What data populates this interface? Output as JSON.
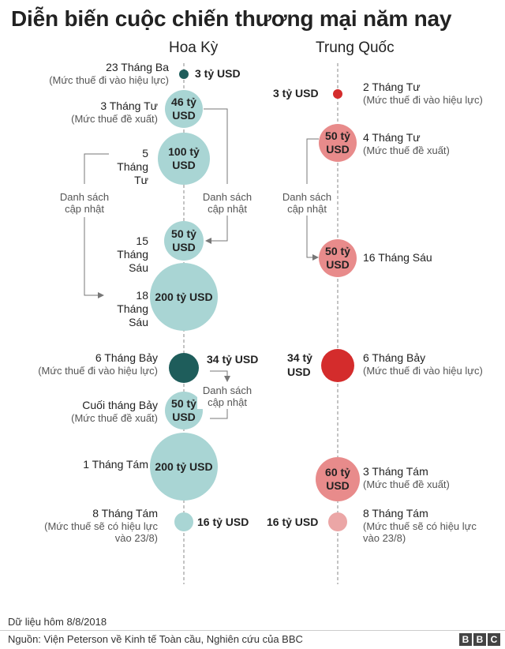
{
  "title": "Diễn biến cuộc chiến thương mại năm nay",
  "columns": {
    "us": "Hoa Kỳ",
    "china": "Trung Quốc"
  },
  "us_events": [
    {
      "date": "23 Tháng Ba",
      "note": "(Mức thuế đi vào hiệu lực)",
      "value": "3 tỷ USD"
    },
    {
      "date": "3 Tháng Tư",
      "note": "(Mức thuế đề xuất)",
      "value": "46 tỷ USD"
    },
    {
      "date": "5 Tháng Tư",
      "note": "",
      "value": "100 tỷ USD"
    },
    {
      "date": "15 Tháng Sáu",
      "note": "",
      "value": "50 tỷ USD"
    },
    {
      "date": "18 Tháng Sáu",
      "note": "",
      "value": "200 tỷ USD"
    },
    {
      "date": "6 Tháng Bảy",
      "note": "(Mức thuế đi vào hiệu lực)",
      "value": "34 tỷ USD"
    },
    {
      "date": "Cuối tháng Bảy",
      "note": "(Mức thuế đề xuất)",
      "value": "50 tỷ USD"
    },
    {
      "date": "1 Tháng Tám",
      "note": "",
      "value": "200 tỷ USD"
    },
    {
      "date": "8 Tháng Tám",
      "note": "(Mức thuế sẽ có hiệu lực vào 23/8)",
      "value": "16 tỷ USD"
    }
  ],
  "china_events": [
    {
      "date": "2 Tháng Tư",
      "note": "(Mức thuế đi vào hiệu lực)",
      "value": "3 tỷ USD"
    },
    {
      "date": "4 Tháng Tư",
      "note": "(Mức thuế đề xuất)",
      "value": "50 tỷ USD"
    },
    {
      "date": "16 Tháng Sáu",
      "note": "",
      "value": "50 tỷ USD"
    },
    {
      "date": "6 Tháng Bảy",
      "note": "(Mức thuế đi vào hiệu lực)",
      "value": "34 tỷ USD"
    },
    {
      "date": "3 Tháng Tám",
      "note": "(Mức thuế đề xuất)",
      "value": "60 tỷ USD"
    },
    {
      "date": "8 Tháng Tám",
      "note": "(Mức thuế sẽ có hiệu lực vào 23/8)",
      "value": "16 tỷ USD"
    }
  ],
  "update_label": "Danh sách cập nhật",
  "footer": {
    "date": "Dữ liệu hôm 8/8/2018",
    "source": "Nguồn: Viện Peterson về Kinh tế Toàn cầu, Nghiên cứu của BBC",
    "logo": [
      "B",
      "B",
      "C"
    ]
  },
  "colors": {
    "us_light": "#a9d5d4",
    "us_dark": "#1e5d5b",
    "china_light": "#e88b8b",
    "china_dark": "#d42c2c"
  }
}
